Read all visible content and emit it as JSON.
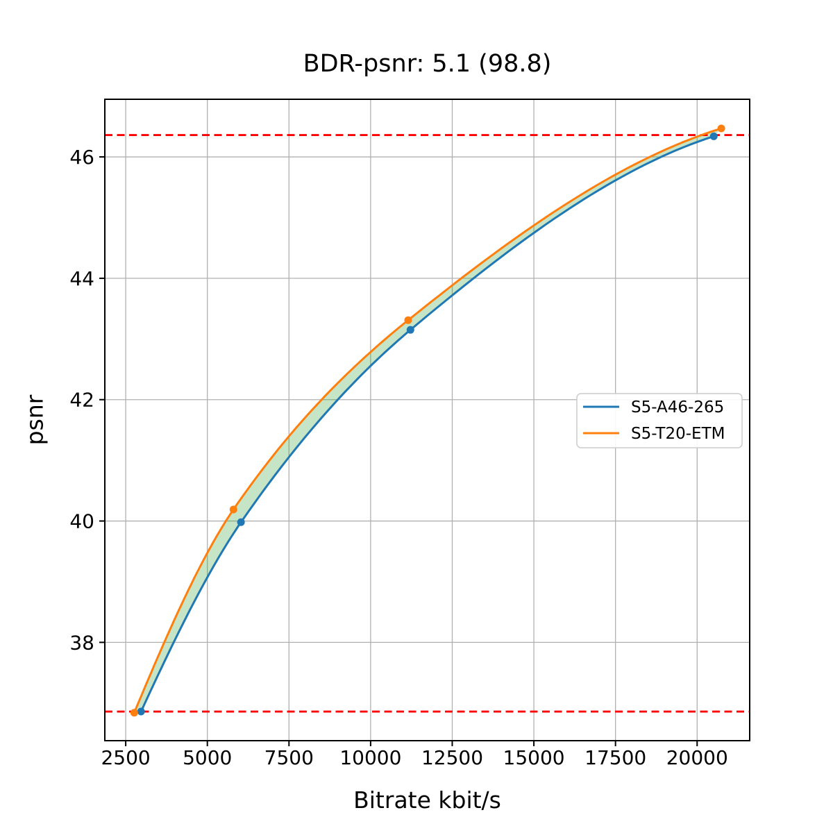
{
  "chart_data": {
    "type": "line",
    "title": "BDR-psnr: 5.1 (98.8)",
    "xlabel": "Bitrate kbit/s",
    "ylabel": "psnr",
    "xlim": [
      1860,
      21610
    ],
    "ylim": [
      36.38,
      46.95
    ],
    "x_ticks": [
      2500,
      5000,
      7500,
      10000,
      12500,
      15000,
      17500,
      20000
    ],
    "y_ticks": [
      38,
      40,
      42,
      44,
      46
    ],
    "grid": true,
    "legend_position": "center right",
    "series": [
      {
        "name": "S5-A46-265",
        "color": "#1f77b4",
        "marker": "circle",
        "points": [
          [
            2970,
            36.86
          ],
          [
            6030,
            39.98
          ],
          [
            11220,
            43.15
          ],
          [
            20510,
            46.34
          ]
        ]
      },
      {
        "name": "S5-T20-ETM",
        "color": "#ff7f0e",
        "marker": "circle",
        "points": [
          [
            2760,
            36.84
          ],
          [
            5800,
            40.19
          ],
          [
            11150,
            43.31
          ],
          [
            20740,
            46.47
          ]
        ]
      }
    ],
    "hlines": [
      {
        "y": 46.36,
        "color": "#ff0000",
        "style": "dashed"
      },
      {
        "y": 36.86,
        "color": "#ff0000",
        "style": "dashed"
      }
    ],
    "fill_between": {
      "color": "#2ca02c",
      "opacity": 0.27
    },
    "colors": {
      "grid": "#b0b0b0",
      "spine": "#000000",
      "legend_border": "#cccccc",
      "background": "#ffffff"
    }
  }
}
